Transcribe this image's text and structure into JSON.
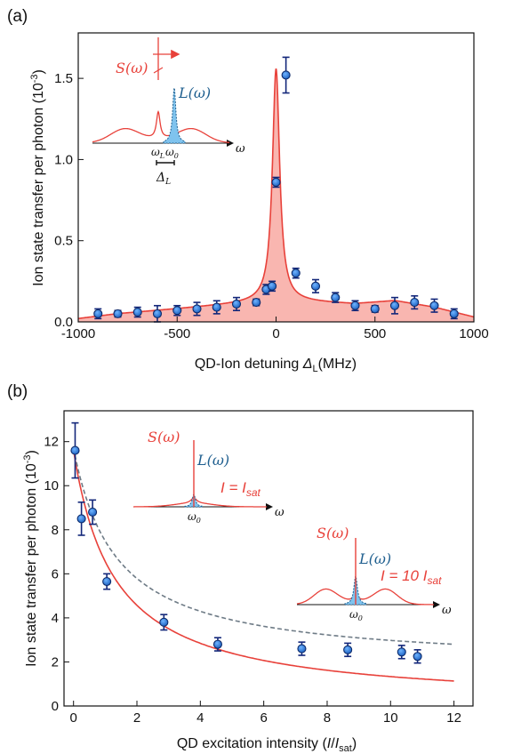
{
  "colors": {
    "model": "#e8413a",
    "model_fill": "#f9b6b0",
    "points": "#2f7fd6",
    "points_edge": "#0d2b6b",
    "errorbar": "#13277a",
    "dashed": "#6e7b86",
    "spectrum_L": "#1f5f8f",
    "spectrum_L_fill": "#7fc3ee"
  },
  "chart_data": [
    {
      "panel": "(a)",
      "type": "scatter",
      "xlabel": "QD-Ion detuning ",
      "xlabel_symbol": "Δ",
      "xlabel_sub": "L",
      "xlabel_unit": "(MHz)",
      "ylabel": "Ion state transfer per photon (10",
      "ylabel_sup": "-3",
      "ylabel_end": ")",
      "xlim": [
        -1000,
        1000
      ],
      "ylim": [
        0,
        1.78
      ],
      "xticks": [
        -1000,
        -500,
        0,
        500,
        1000
      ],
      "xtick_labels": [
        "-1000",
        "-500",
        "0",
        "500",
        "1000"
      ],
      "yticks": [
        0,
        0.5,
        1.0,
        1.5
      ],
      "ytick_labels": [
        "0.0",
        "0.5",
        "1.0",
        "1.5"
      ],
      "points": {
        "x": [
          -900,
          -800,
          -700,
          -600,
          -500,
          -400,
          -300,
          -200,
          -100,
          -50,
          -20,
          0,
          50,
          100,
          200,
          300,
          400,
          500,
          600,
          700,
          800,
          900
        ],
        "y": [
          0.05,
          0.05,
          0.06,
          0.05,
          0.07,
          0.08,
          0.09,
          0.11,
          0.12,
          0.2,
          0.22,
          0.86,
          1.52,
          0.3,
          0.22,
          0.15,
          0.1,
          0.08,
          0.1,
          0.12,
          0.1,
          0.05
        ],
        "yerr": [
          0.03,
          0.02,
          0.03,
          0.05,
          0.03,
          0.04,
          0.04,
          0.04,
          0.02,
          0.03,
          0.03,
          0.03,
          0.11,
          0.03,
          0.04,
          0.03,
          0.03,
          0.02,
          0.05,
          0.04,
          0.04,
          0.03
        ]
      },
      "model_curve": {
        "peak": 1.43,
        "peak_x": 0,
        "peak_width": 22,
        "background": [
          [
            -1000,
            0.02
          ],
          [
            -800,
            0.05
          ],
          [
            -600,
            0.07
          ],
          [
            -400,
            0.09
          ],
          [
            -200,
            0.11
          ],
          [
            -100,
            0.12
          ],
          [
            0,
            0.13
          ],
          [
            200,
            0.12
          ],
          [
            400,
            0.11
          ],
          [
            600,
            0.13
          ],
          [
            800,
            0.09
          ],
          [
            1000,
            0.03
          ]
        ]
      },
      "inset": {
        "S_label": "S(ω)",
        "L_label": "L(ω)",
        "axis_label": "ω",
        "omega_L": "ω",
        "omega_L_sub": "L",
        "omega_0": "ω",
        "omega_0_sub": "0",
        "delta_label": "Δ",
        "delta_sub": "L"
      }
    },
    {
      "panel": "(b)",
      "type": "scatter",
      "xlabel": "QD excitation intensity (",
      "xlabel_I": "I",
      "xlabel_slash": "/",
      "xlabel_Isat": "I",
      "xlabel_sat": "sat",
      "xlabel_end": ")",
      "ylabel": "Ion state transfer per photon (10",
      "ylabel_sup": "-3",
      "ylabel_end": ")",
      "xlim": [
        -0.3,
        12.6
      ],
      "ylim": [
        0,
        13.4
      ],
      "xticks": [
        0,
        2,
        4,
        6,
        8,
        10,
        12
      ],
      "xtick_labels": [
        "0",
        "2",
        "4",
        "6",
        "8",
        "10",
        "12"
      ],
      "yticks": [
        0,
        2,
        4,
        6,
        8,
        10,
        12
      ],
      "ytick_labels": [
        "0",
        "2",
        "4",
        "6",
        "8",
        "10",
        "12"
      ],
      "points": {
        "x": [
          0.05,
          0.25,
          0.6,
          1.05,
          2.85,
          4.55,
          7.2,
          8.65,
          10.35,
          10.85
        ],
        "y": [
          11.6,
          8.5,
          8.8,
          5.65,
          3.8,
          2.8,
          2.6,
          2.55,
          2.45,
          2.25
        ],
        "yerr": [
          1.25,
          0.75,
          0.55,
          0.35,
          0.35,
          0.3,
          0.3,
          0.3,
          0.3,
          0.3
        ]
      },
      "solid_fit": {
        "A": 11.6,
        "B": 0.0,
        "I0": 1.3
      },
      "dashed_fit": {
        "A": 9.9,
        "B": 1.8,
        "I0": 1.35
      },
      "inset1": {
        "S_label": "S(ω)",
        "L_label": "L(ω)",
        "axis_label": "ω",
        "omega_0": "ω",
        "omega_0_sub": "0",
        "intensity": "I = I",
        "intensity_sub": "sat"
      },
      "inset2": {
        "S_label": "S(ω)",
        "L_label": "L(ω)",
        "axis_label": "ω",
        "omega_0": "ω",
        "omega_0_sub": "0",
        "intensity": "I = 10 I",
        "intensity_sub": "sat"
      }
    }
  ]
}
